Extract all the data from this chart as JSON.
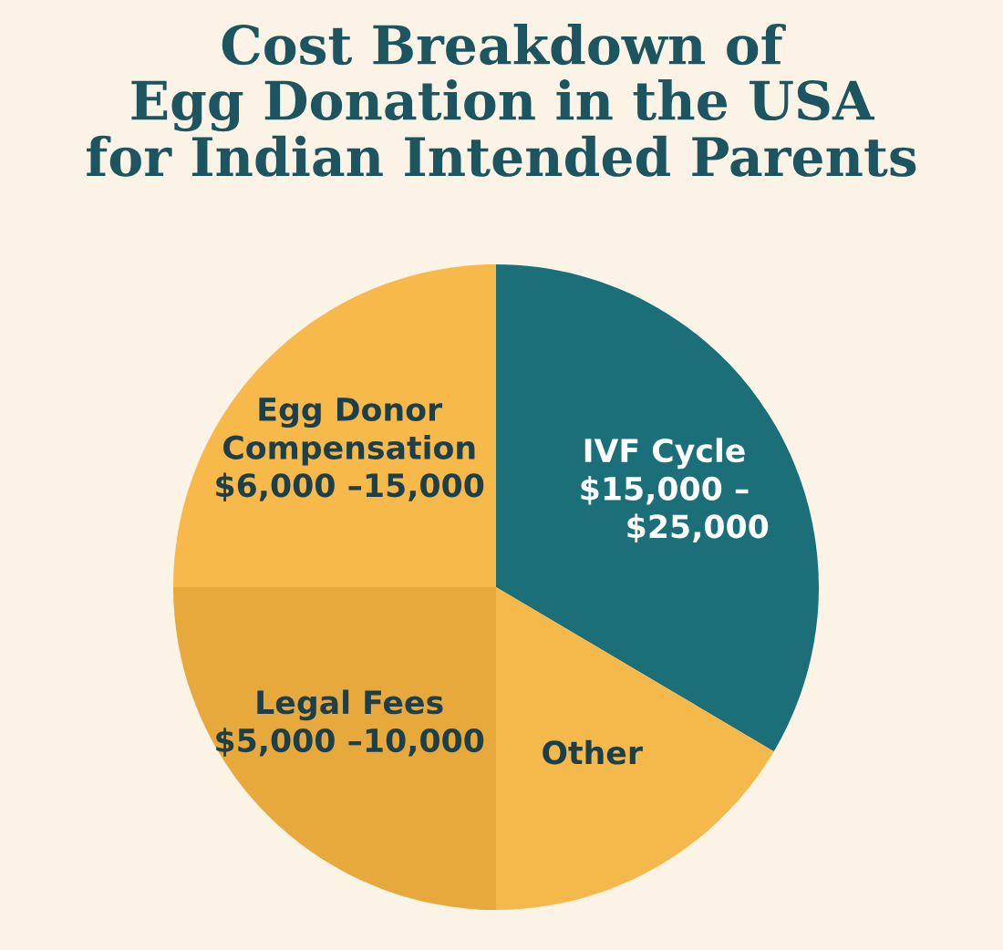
{
  "chart_data": {
    "type": "pie",
    "title": "Cost Breakdown of\nEgg Donation in the USA\nfor Indian Intended Parents",
    "categories": [
      "IVF Cycle\n$15,000 –\n      $25,000",
      "Other",
      "Legal Fees\n$5,000 –10,000",
      "Egg Donor\nCompensation\n$6,000 –15,000"
    ],
    "values": [
      33.5,
      16.5,
      25,
      25
    ],
    "colors": [
      "#1b6f78",
      "#f5b84a",
      "#e8a93c",
      "#f6b94a"
    ],
    "legend": false
  }
}
